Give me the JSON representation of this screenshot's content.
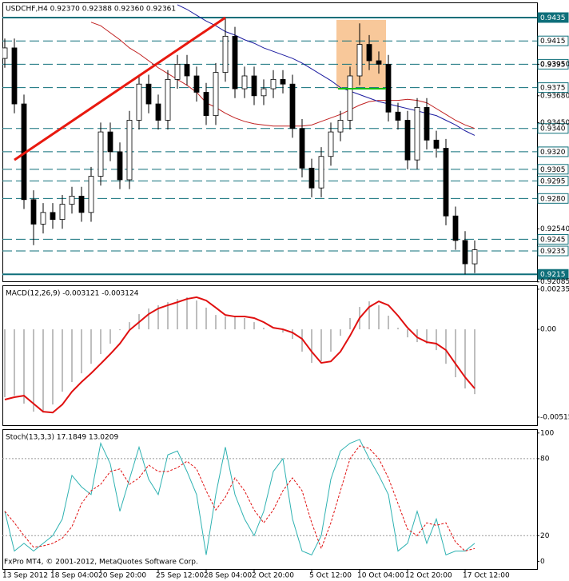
{
  "chart_data": [
    {
      "type": "candlestick",
      "title": "USDCHF,H4  0.92370 0.92388 0.92360 0.92361",
      "categories": [
        "13 Sep 2012",
        null,
        null,
        null,
        null,
        "18 Sep 04:00",
        null,
        null,
        null,
        null,
        "20 Sep 20:00",
        null,
        null,
        null,
        null,
        null,
        "25 Sep 12:00",
        null,
        null,
        null,
        null,
        "28 Sep 04:00",
        null,
        null,
        null,
        null,
        "2 Oct 20:00",
        null,
        null,
        null,
        null,
        null,
        "5 Oct 12:00",
        null,
        null,
        null,
        null,
        "10 Oct 04:00",
        null,
        null,
        null,
        null,
        "12 Oct 20:00",
        null,
        null,
        null,
        null,
        null,
        "17 Oct 12:00",
        null
      ],
      "open": [
        0.94,
        0.9409,
        0.9361,
        0.9279,
        0.9258,
        0.9268,
        0.9262,
        0.9275,
        0.9282,
        0.9268,
        0.9299,
        0.9337,
        0.932,
        0.9296,
        0.9347,
        0.9378,
        0.9361,
        0.9347,
        0.9382,
        0.9395,
        0.9385,
        0.9371,
        0.9351,
        0.9388,
        0.9419,
        0.9374,
        0.9385,
        0.9368,
        0.9374,
        0.9382,
        0.9378,
        0.934,
        0.9306,
        0.9289,
        0.9316,
        0.9337,
        0.9347,
        0.9385,
        0.9412,
        0.9398,
        0.9395,
        0.9354,
        0.9347,
        0.9313,
        0.9358,
        0.933,
        0.9323,
        0.9265,
        0.9244,
        0.9224
      ],
      "high": [
        0.9417,
        0.9417,
        0.9369,
        0.9287,
        0.9276,
        0.9276,
        0.9283,
        0.929,
        0.929,
        0.9307,
        0.9345,
        0.9345,
        0.9328,
        0.9355,
        0.9386,
        0.9386,
        0.9369,
        0.939,
        0.9403,
        0.9403,
        0.9393,
        0.9379,
        0.9396,
        0.9434,
        0.9427,
        0.9393,
        0.9393,
        0.9382,
        0.939,
        0.939,
        0.9386,
        0.9348,
        0.9314,
        0.9324,
        0.9345,
        0.9355,
        0.9393,
        0.943,
        0.942,
        0.9406,
        0.9403,
        0.9362,
        0.9355,
        0.9366,
        0.9366,
        0.9338,
        0.9331,
        0.9273,
        0.9252,
        0.9244
      ],
      "low": [
        0.9392,
        0.9353,
        0.9271,
        0.924,
        0.925,
        0.9254,
        0.9254,
        0.9267,
        0.926,
        0.926,
        0.9291,
        0.9312,
        0.9288,
        0.9288,
        0.9339,
        0.9353,
        0.9339,
        0.9339,
        0.9374,
        0.9377,
        0.9363,
        0.9343,
        0.9343,
        0.938,
        0.9366,
        0.9366,
        0.936,
        0.936,
        0.9366,
        0.937,
        0.9332,
        0.9298,
        0.9281,
        0.9281,
        0.9308,
        0.9329,
        0.9339,
        0.9377,
        0.939,
        0.9387,
        0.9346,
        0.9339,
        0.9305,
        0.9305,
        0.9322,
        0.9315,
        0.9257,
        0.9236,
        0.9215,
        0.9216
      ],
      "close": [
        0.9409,
        0.9361,
        0.9279,
        0.9258,
        0.9268,
        0.9262,
        0.9275,
        0.9282,
        0.9268,
        0.9299,
        0.9337,
        0.932,
        0.9296,
        0.9347,
        0.9378,
        0.9361,
        0.9347,
        0.9382,
        0.9395,
        0.9385,
        0.9371,
        0.9351,
        0.9388,
        0.9419,
        0.9374,
        0.9385,
        0.9368,
        0.9374,
        0.9382,
        0.9378,
        0.934,
        0.9306,
        0.9289,
        0.9316,
        0.9337,
        0.9347,
        0.9385,
        0.9412,
        0.9398,
        0.9395,
        0.9354,
        0.9347,
        0.9313,
        0.9358,
        0.933,
        0.9323,
        0.9265,
        0.9244,
        0.9224,
        0.9236
      ],
      "series": [
        {
          "color": "#c02020",
          "values": [
            null,
            null,
            null,
            null,
            null,
            null,
            null,
            null,
            null,
            0.9431,
            0.9428,
            0.9422,
            0.9416,
            0.9409,
            0.9404,
            0.9398,
            0.9392,
            0.9387,
            0.9382,
            0.9377,
            0.9371,
            0.9362,
            0.9358,
            0.9353,
            0.9349,
            0.9346,
            0.9344,
            0.9343,
            0.9342,
            0.9342,
            0.9342,
            0.9342,
            0.9343,
            0.9346,
            0.9349,
            0.9352,
            0.9356,
            0.936,
            0.9363,
            0.9364,
            0.9364,
            0.9364,
            0.9365,
            0.9364,
            0.9362,
            0.9357,
            0.9352,
            0.9347,
            0.9343,
            0.934
          ]
        },
        {
          "color": "#1c1ca0",
          "values": [
            null,
            null,
            null,
            null,
            null,
            null,
            null,
            null,
            null,
            null,
            null,
            null,
            null,
            null,
            null,
            null,
            null,
            null,
            0.9446,
            0.9442,
            0.9437,
            0.9432,
            0.9428,
            0.9423,
            0.942,
            0.9416,
            0.9413,
            0.9409,
            0.9406,
            0.9403,
            0.94,
            0.9396,
            0.9391,
            0.9386,
            0.9381,
            0.9375,
            0.9372,
            0.9369,
            0.9366,
            0.9363,
            0.9361,
            0.9359,
            0.9357,
            0.9355,
            0.9353,
            0.9351,
            0.9347,
            0.9343,
            0.9338,
            0.9334
          ]
        }
      ],
      "levels": [
        0.9435,
        0.9415,
        0.9395,
        0.9375,
        {
          "value": 0.934,
          "label": "0.9340"
        },
        {
          "value": 0.932,
          "label": "0.9320"
        },
        0.9305,
        0.9295,
        {
          "value": 0.928,
          "label": "0.9280"
        },
        0.9245,
        0.9235,
        0.9215
      ],
      "solid_levels": [
        0.9435,
        0.9215
      ],
      "level_color": "#0e6f7a",
      "trendline": {
        "x": [
          1,
          23
        ],
        "values": [
          0.9313,
          0.9435
        ],
        "color": "#e8190f"
      },
      "highlight": {
        "x": [
          35,
          40
        ],
        "values": [
          0.9374,
          0.9433
        ],
        "color": "#f8c89a"
      },
      "support": {
        "x": [
          35,
          40
        ],
        "value": 0.9374,
        "color": "#10c010"
      },
      "ylim": [
        0.9209,
        0.9448
      ],
      "yticks": [
        {
          "value": 0.9395,
          "label": "0.93950"
        },
        {
          "value": 0.9368,
          "label": "0.93680"
        },
        {
          "value": 0.9345,
          "label": "0.93450"
        },
        {
          "value": 0.9254,
          "label": "0.92540"
        },
        {
          "value": 0.92085,
          "label": "0.92085"
        }
      ]
    },
    {
      "type": "macd",
      "title": "MACD(12,26,9) -0.003121 -0.003124",
      "values": [
        -0.00398,
        -0.00389,
        -0.00436,
        -0.00483,
        -0.00488,
        -0.00441,
        -0.00366,
        -0.00309,
        -0.00258,
        -0.00202,
        -0.00145,
        -0.00084,
        -5e-05,
        0.00042,
        0.00089,
        0.00122,
        0.00141,
        0.00159,
        0.00178,
        0.00188,
        0.00169,
        0.00127,
        0.00084,
        0.00075,
        0.00075,
        0.00066,
        0.00042,
        9e-05,
        0.0,
        -0.00019,
        -0.00056,
        -0.00131,
        -0.00197,
        -0.00188,
        -0.00131,
        -0.00038,
        0.00066,
        0.00131,
        0.00164,
        0.00141,
        0.0008,
        9e-05,
        -0.00047,
        -0.00075,
        -0.00084,
        -0.00122,
        -0.00202,
        -0.00281,
        -0.00347,
        -0.0038
      ],
      "color": "#a8a8a8",
      "signal": [
        -0.00412,
        -0.00398,
        -0.00389,
        -0.00436,
        -0.00483,
        -0.00488,
        -0.00441,
        -0.00366,
        -0.00309,
        -0.00258,
        -0.00202,
        -0.00145,
        -0.00084,
        -5e-05,
        0.00042,
        0.00089,
        0.00122,
        0.00141,
        0.00159,
        0.00178,
        0.00188,
        0.00169,
        0.00127,
        0.00084,
        0.00075,
        0.00075,
        0.00066,
        0.00042,
        9e-05,
        0.0,
        -0.00019,
        -0.00056,
        -0.00131,
        -0.00197,
        -0.00188,
        -0.00131,
        -0.00038,
        0.00066,
        0.00131,
        0.00164,
        0.00141,
        0.0008,
        9e-05,
        -0.00047,
        -0.00075,
        -0.00084,
        -0.00122,
        -0.00202,
        -0.00281,
        -0.00347
      ],
      "signal_color": "#e01010",
      "ylim": [
        -0.00562,
        0.00258
      ],
      "yticks": [
        0.00235,
        {
          "value": 0,
          "label": "0.00"
        },
        -0.00515
      ]
    },
    {
      "type": "stochastic",
      "title": "Stoch(13,3,3) 17.1849 13.0209",
      "series": [
        {
          "color": "#2fb2b2",
          "values": [
            39,
            8,
            14,
            8,
            14,
            20,
            33,
            67,
            58,
            52,
            92,
            76,
            39,
            64,
            89,
            64,
            52,
            83,
            86,
            70,
            52,
            5,
            52,
            89,
            52,
            33,
            20,
            39,
            70,
            80,
            33,
            8,
            5,
            20,
            64,
            86,
            92,
            95,
            80,
            67,
            52,
            8,
            14,
            39,
            14,
            33,
            5,
            8,
            8,
            14
          ]
        },
        {
          "color": "#e01010",
          "values": [
            39,
            30,
            20,
            11,
            12,
            14,
            18,
            27,
            45,
            55,
            60,
            70,
            72,
            60,
            65,
            75,
            70,
            70,
            73,
            78,
            72,
            55,
            40,
            50,
            65,
            55,
            40,
            30,
            40,
            55,
            65,
            55,
            30,
            10,
            30,
            55,
            80,
            90,
            88,
            80,
            65,
            45,
            25,
            20,
            30,
            28,
            30,
            15,
            8,
            10
          ]
        }
      ],
      "levels": [
        20,
        80
      ],
      "ylim": [
        -6,
        103
      ],
      "yticks": [
        0,
        20,
        80,
        100
      ],
      "footer": "FxPro MT4, © 2001-2012, MetaQuotes Software Corp."
    }
  ]
}
